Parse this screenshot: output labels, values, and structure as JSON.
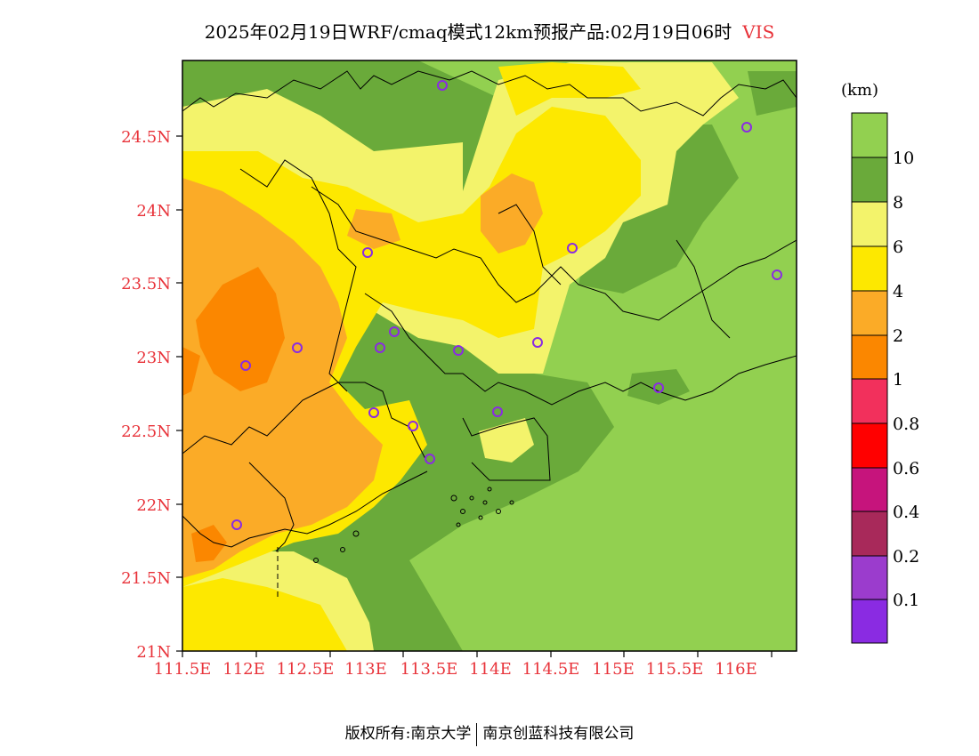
{
  "title": {
    "main": "2025年02月19日WRF/cmaq模式12km预报产品:02月19日06时",
    "variable": "VIS"
  },
  "map": {
    "lat_labels": [
      "24.5N",
      "24N",
      "23.5N",
      "23N",
      "22.5N",
      "22N",
      "21.5N",
      "21N"
    ],
    "lon_labels": [
      "111.5E",
      "112E",
      "112.5E",
      "113E",
      "113.5E",
      "114E",
      "114.5E",
      "115E",
      "115.5E",
      "116E"
    ],
    "colors": {
      "c10": "#92d050",
      "c8": "#6aaa3a",
      "c6": "#f3f36b",
      "c4": "#fde800",
      "c2": "#fbab27",
      "c1": "#fb8700",
      "c08": "#f2305c",
      "c06": "#ff0000",
      "c04": "#c6147c",
      "c02": "#a8295a",
      "c01": "#9b3ccd",
      "c0": "#8a2be2",
      "station": "#8a2be2",
      "boundary": "#000000"
    }
  },
  "colorbar": {
    "unit": "(km)",
    "labels": [
      "10",
      "8",
      "6",
      "4",
      "2",
      "1",
      "0.8",
      "0.6",
      "0.4",
      "0.2",
      "0.1"
    ]
  },
  "footer": {
    "left": "版权所有:南京大学",
    "right": "南京创蓝科技有限公司"
  }
}
